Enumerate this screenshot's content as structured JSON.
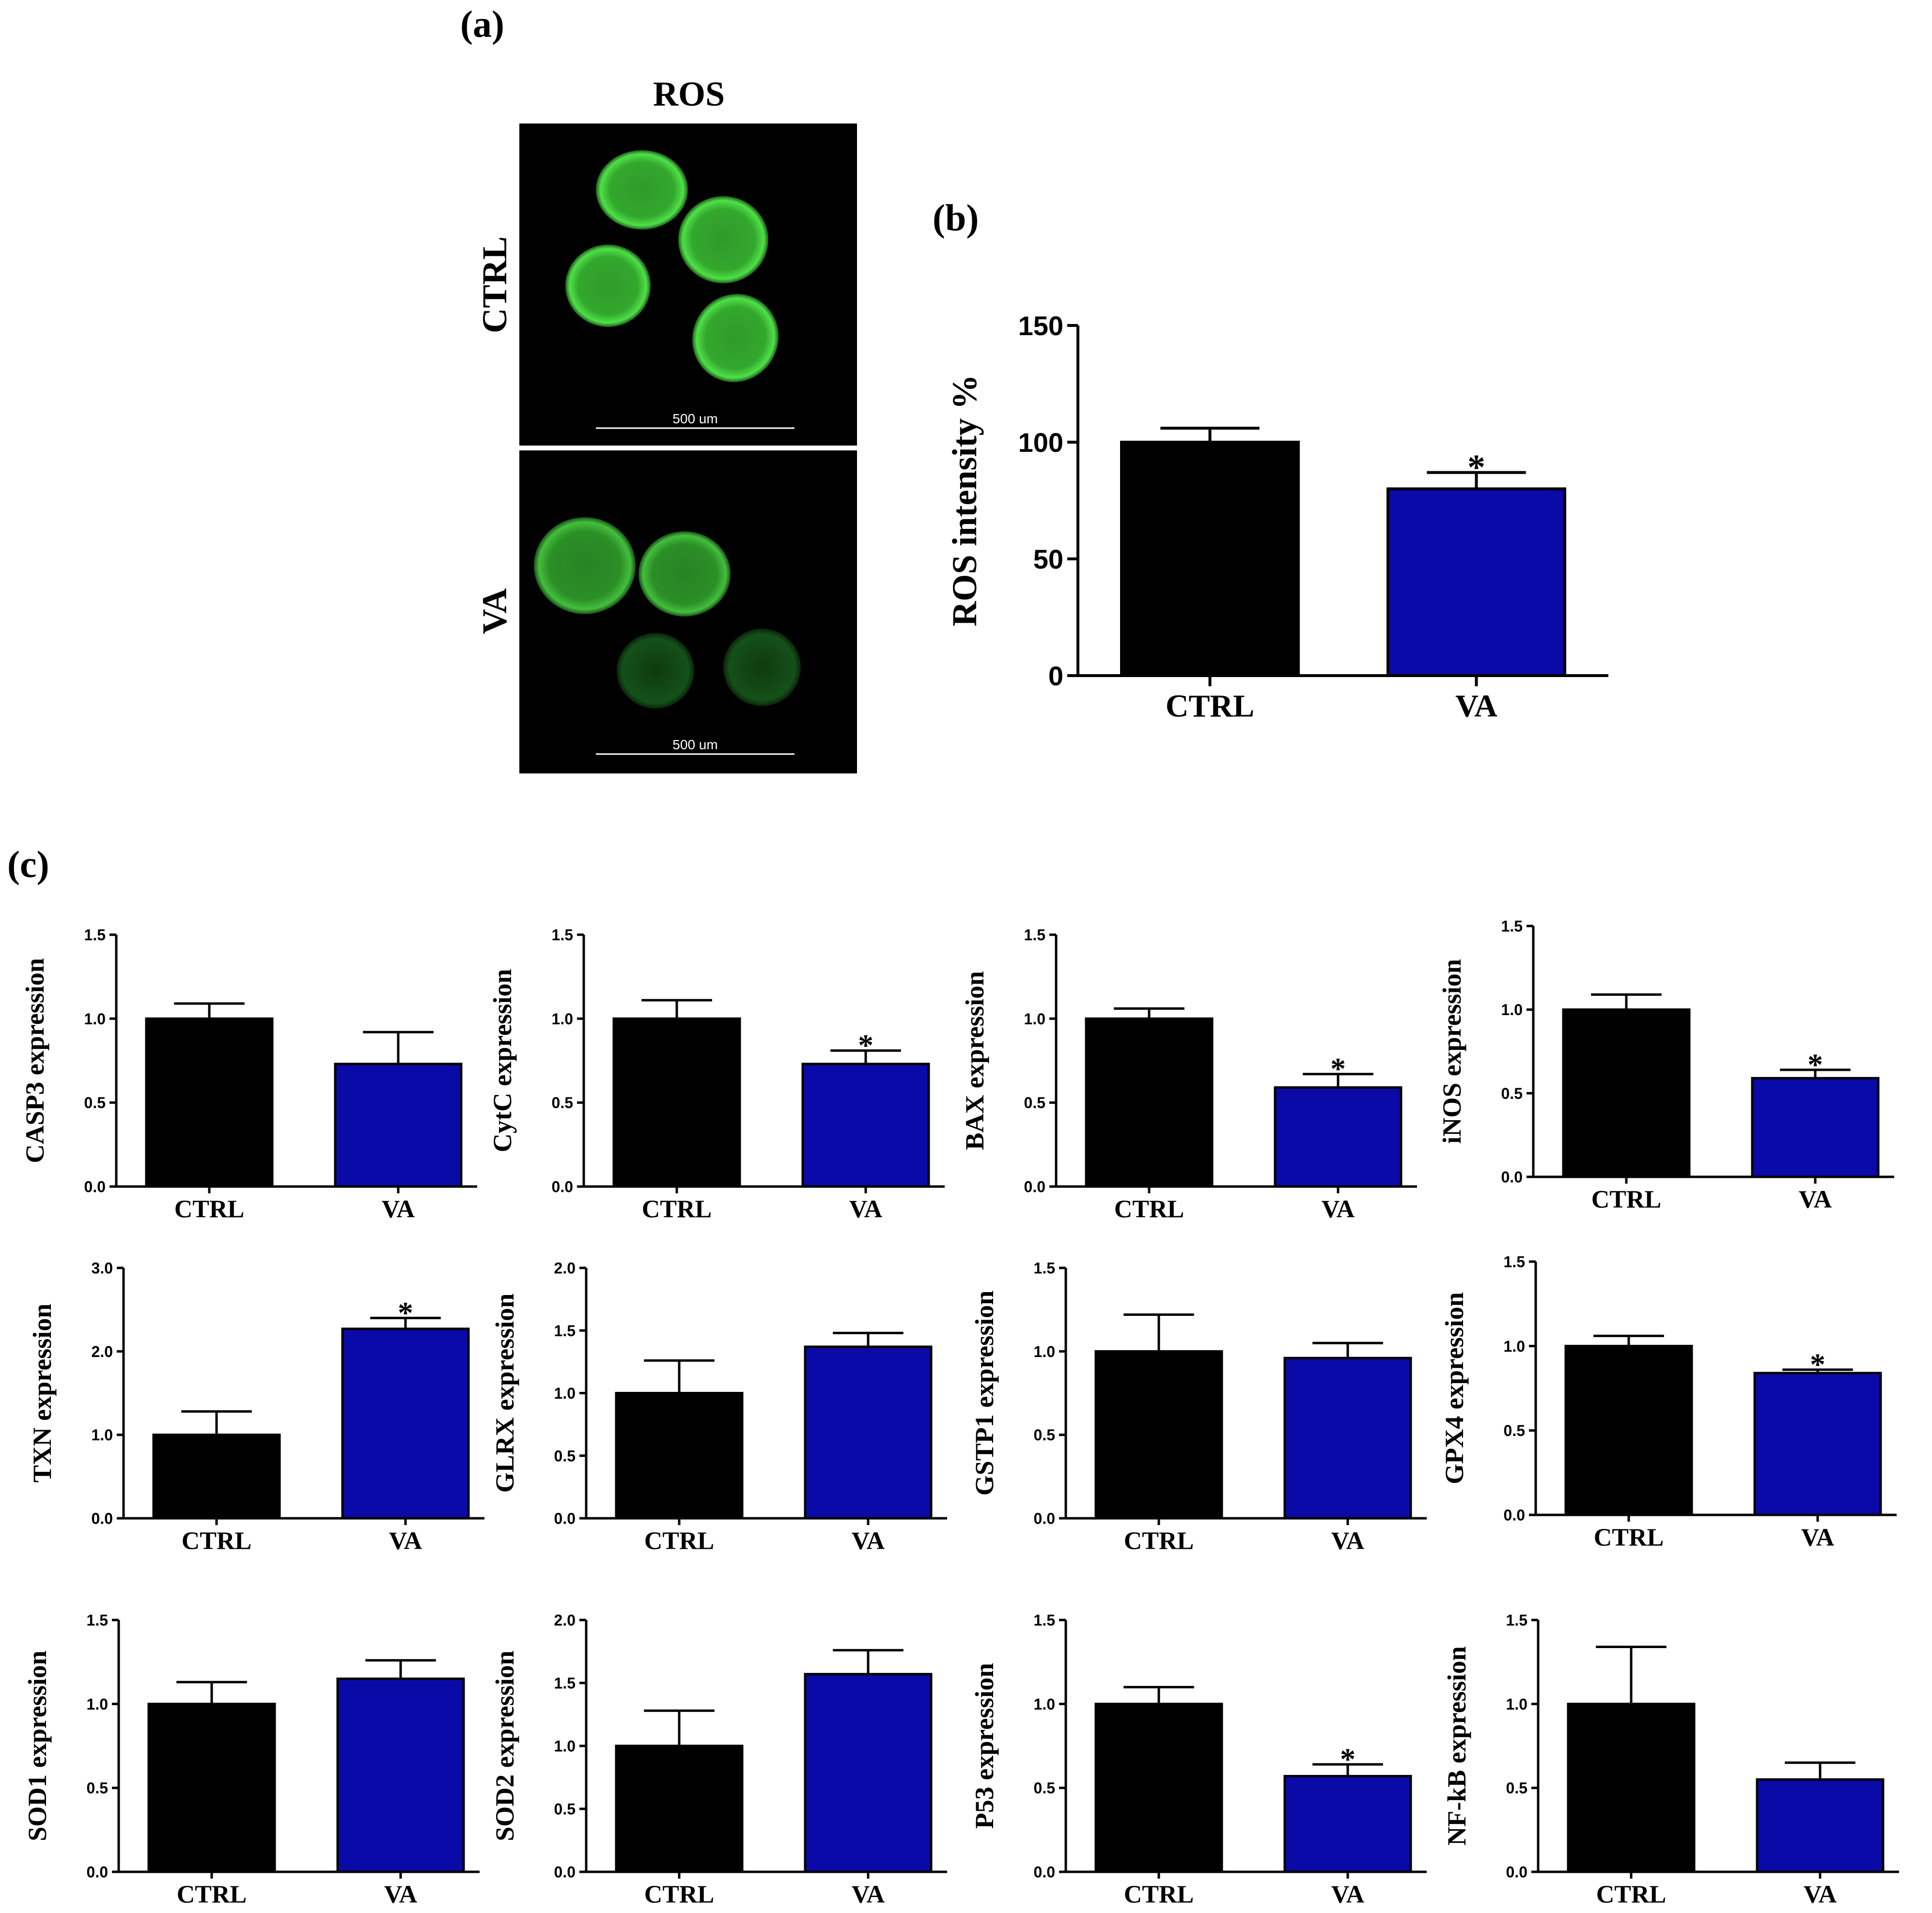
{
  "panel_labels": {
    "a": "(a)",
    "b": "(b)",
    "c": "(c)"
  },
  "colors": {
    "ctrl": "#000000",
    "va": "#0a0aa8",
    "fluor": "#3fd03a",
    "image_bg": "#000000"
  },
  "microscopy": {
    "title": "ROS",
    "rows": [
      {
        "label": "CTRL",
        "scale_bar": "500 um"
      },
      {
        "label": "VA",
        "scale_bar": "500 um"
      }
    ]
  },
  "chart_data": [
    {
      "id": "ros",
      "type": "bar",
      "title": "",
      "categories": [
        "CTRL",
        "VA"
      ],
      "values": [
        100,
        80
      ],
      "errors": [
        6,
        7
      ],
      "significance": [
        "",
        "*"
      ],
      "ylabel": "ROS intensity %",
      "ylim": [
        0,
        150
      ],
      "yticks": [
        "0",
        "50",
        "100",
        "150"
      ]
    },
    {
      "id": "casp3",
      "type": "bar",
      "categories": [
        "CTRL",
        "VA"
      ],
      "values": [
        1.0,
        0.73
      ],
      "errors": [
        0.09,
        0.19
      ],
      "significance": [
        "",
        ""
      ],
      "ylabel": "CASP3 expression",
      "ylim": [
        0,
        1.5
      ],
      "yticks": [
        "0.0",
        "0.5",
        "1.0",
        "1.5"
      ]
    },
    {
      "id": "cytc",
      "type": "bar",
      "categories": [
        "CTRL",
        "VA"
      ],
      "values": [
        1.0,
        0.73
      ],
      "errors": [
        0.11,
        0.08
      ],
      "significance": [
        "",
        "*"
      ],
      "ylabel": "CytC expression",
      "ylim": [
        0,
        1.5
      ],
      "yticks": [
        "0.0",
        "0.5",
        "1.0",
        "1.5"
      ]
    },
    {
      "id": "bax",
      "type": "bar",
      "categories": [
        "CTRL",
        "VA"
      ],
      "values": [
        1.0,
        0.59
      ],
      "errors": [
        0.06,
        0.08
      ],
      "significance": [
        "",
        "*"
      ],
      "ylabel": "BAX expression",
      "ylim": [
        0,
        1.5
      ],
      "yticks": [
        "0.0",
        "0.5",
        "1.0",
        "1.5"
      ]
    },
    {
      "id": "inos",
      "type": "bar",
      "categories": [
        "CTRL",
        "VA"
      ],
      "values": [
        1.0,
        0.59
      ],
      "errors": [
        0.09,
        0.05
      ],
      "significance": [
        "",
        "*"
      ],
      "ylabel": "iNOS expression",
      "ylim": [
        0,
        1.5
      ],
      "yticks": [
        "0.0",
        "0.5",
        "1.0",
        "1.5"
      ]
    },
    {
      "id": "txn",
      "type": "bar",
      "categories": [
        "CTRL",
        "VA"
      ],
      "values": [
        1.0,
        2.27
      ],
      "errors": [
        0.28,
        0.13
      ],
      "significance": [
        "",
        "*"
      ],
      "ylabel": "TXN expression",
      "ylim": [
        0,
        3.0
      ],
      "yticks": [
        "0.0",
        "1.0",
        "2.0",
        "3.0"
      ]
    },
    {
      "id": "glrx",
      "type": "bar",
      "categories": [
        "CTRL",
        "VA"
      ],
      "values": [
        1.0,
        1.37
      ],
      "errors": [
        0.26,
        0.11
      ],
      "significance": [
        "",
        ""
      ],
      "ylabel": "GLRX expression",
      "ylim": [
        0,
        2.0
      ],
      "yticks": [
        "0.0",
        "0.5",
        "1.0",
        "1.5",
        "2.0"
      ]
    },
    {
      "id": "gstp1",
      "type": "bar",
      "categories": [
        "CTRL",
        "VA"
      ],
      "values": [
        1.0,
        0.96
      ],
      "errors": [
        0.22,
        0.09
      ],
      "significance": [
        "",
        ""
      ],
      "ylabel": "GSTP1 expression",
      "ylim": [
        0,
        1.5
      ],
      "yticks": [
        "0.0",
        "0.5",
        "1.0",
        "1.5"
      ]
    },
    {
      "id": "gpx4",
      "type": "bar",
      "categories": [
        "CTRL",
        "VA"
      ],
      "values": [
        1.0,
        0.84
      ],
      "errors": [
        0.06,
        0.02
      ],
      "significance": [
        "",
        "*"
      ],
      "ylabel": "GPX4 expression",
      "ylim": [
        0,
        1.5
      ],
      "yticks": [
        "0.0",
        "0.5",
        "1.0",
        "1.5"
      ]
    },
    {
      "id": "sod1",
      "type": "bar",
      "categories": [
        "CTRL",
        "VA"
      ],
      "values": [
        1.0,
        1.15
      ],
      "errors": [
        0.13,
        0.11
      ],
      "significance": [
        "",
        ""
      ],
      "ylabel": "SOD1 expression",
      "ylim": [
        0,
        1.5
      ],
      "yticks": [
        "0.0",
        "0.5",
        "1.0",
        "1.5"
      ]
    },
    {
      "id": "sod2",
      "type": "bar",
      "categories": [
        "CTRL",
        "VA"
      ],
      "values": [
        1.0,
        1.57
      ],
      "errors": [
        0.28,
        0.19
      ],
      "significance": [
        "",
        ""
      ],
      "ylabel": "SOD2 expression",
      "ylim": [
        0,
        2.0
      ],
      "yticks": [
        "0.0",
        "0.5",
        "1.0",
        "1.5",
        "2.0"
      ]
    },
    {
      "id": "p53",
      "type": "bar",
      "categories": [
        "CTRL",
        "VA"
      ],
      "values": [
        1.0,
        0.57
      ],
      "errors": [
        0.1,
        0.07
      ],
      "significance": [
        "",
        "*"
      ],
      "ylabel": "P53 expression",
      "ylim": [
        0,
        1.5
      ],
      "yticks": [
        "0.0",
        "0.5",
        "1.0",
        "1.5"
      ]
    },
    {
      "id": "nfkb",
      "type": "bar",
      "categories": [
        "CTRL",
        "VA"
      ],
      "values": [
        1.0,
        0.55
      ],
      "errors": [
        0.34,
        0.1
      ],
      "significance": [
        "",
        ""
      ],
      "ylabel": "NF-kB expression",
      "ylim": [
        0,
        1.5
      ],
      "yticks": [
        "0.0",
        "0.5",
        "1.0",
        "1.5"
      ]
    }
  ]
}
